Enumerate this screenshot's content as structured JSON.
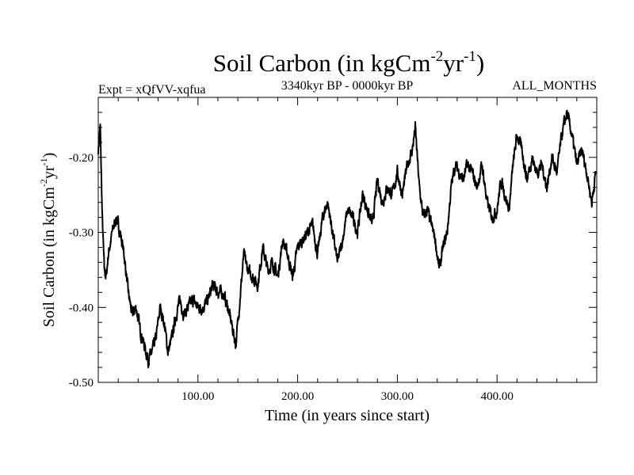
{
  "chart_data": {
    "type": "line",
    "title": {
      "main": "Soil Carbon (in kgCm",
      "sup1": "-2",
      "mid": "yr",
      "sup2": "-1",
      "end": ")"
    },
    "subtitle_left": "Expt = xQfVV-xqfua",
    "subtitle_center": "3340kyr BP - 0000kyr BP",
    "subtitle_right": "ALL_MONTHS",
    "xlabel": "Time (in years since start)",
    "ylabel": {
      "main": "Soil Carbon (in kgCm",
      "sup1": "-2",
      "mid": "yr",
      "sup2": "-1",
      "end": ")"
    },
    "xlim": [
      0,
      500
    ],
    "ylim": [
      -0.5,
      -0.12
    ],
    "x_ticks": [
      {
        "value": 100,
        "label": "100.00"
      },
      {
        "value": 200,
        "label": "200.00"
      },
      {
        "value": 300,
        "label": "300.00"
      },
      {
        "value": 400,
        "label": "400.00"
      }
    ],
    "y_ticks": [
      {
        "value": -0.5,
        "label": "-0.50"
      },
      {
        "value": -0.4,
        "label": "-0.40"
      },
      {
        "value": -0.3,
        "label": "-0.30"
      },
      {
        "value": -0.2,
        "label": "-0.20"
      }
    ],
    "series": [
      {
        "name": "Soil Carbon",
        "x": [
          0,
          2,
          4,
          6,
          8,
          10,
          14,
          18,
          22,
          26,
          30,
          34,
          38,
          42,
          46,
          50,
          54,
          58,
          62,
          66,
          70,
          74,
          78,
          82,
          86,
          90,
          95,
          100,
          105,
          110,
          115,
          120,
          125,
          130,
          135,
          138,
          142,
          146,
          150,
          155,
          160,
          165,
          170,
          175,
          180,
          185,
          190,
          195,
          200,
          205,
          210,
          215,
          220,
          225,
          230,
          235,
          240,
          245,
          250,
          255,
          260,
          265,
          270,
          275,
          280,
          285,
          290,
          295,
          300,
          305,
          310,
          315,
          318,
          322,
          326,
          330,
          334,
          338,
          342,
          346,
          350,
          354,
          358,
          362,
          366,
          370,
          375,
          380,
          385,
          390,
          395,
          400,
          404,
          408,
          412,
          416,
          420,
          425,
          430,
          435,
          440,
          445,
          450,
          455,
          460,
          465,
          470,
          475,
          480,
          485,
          490,
          495,
          499
        ],
        "values": [
          -0.19,
          -0.16,
          -0.28,
          -0.35,
          -0.36,
          -0.33,
          -0.3,
          -0.28,
          -0.3,
          -0.33,
          -0.38,
          -0.41,
          -0.4,
          -0.43,
          -0.45,
          -0.47,
          -0.46,
          -0.44,
          -0.4,
          -0.42,
          -0.46,
          -0.44,
          -0.41,
          -0.39,
          -0.41,
          -0.4,
          -0.39,
          -0.4,
          -0.4,
          -0.39,
          -0.37,
          -0.38,
          -0.38,
          -0.4,
          -0.43,
          -0.45,
          -0.39,
          -0.33,
          -0.35,
          -0.36,
          -0.37,
          -0.32,
          -0.35,
          -0.34,
          -0.36,
          -0.31,
          -0.33,
          -0.36,
          -0.32,
          -0.31,
          -0.3,
          -0.29,
          -0.33,
          -0.28,
          -0.26,
          -0.3,
          -0.34,
          -0.31,
          -0.27,
          -0.28,
          -0.3,
          -0.25,
          -0.27,
          -0.29,
          -0.23,
          -0.26,
          -0.24,
          -0.25,
          -0.22,
          -0.25,
          -0.21,
          -0.19,
          -0.16,
          -0.24,
          -0.28,
          -0.27,
          -0.29,
          -0.31,
          -0.35,
          -0.32,
          -0.3,
          -0.24,
          -0.21,
          -0.22,
          -0.23,
          -0.21,
          -0.22,
          -0.24,
          -0.21,
          -0.26,
          -0.28,
          -0.27,
          -0.23,
          -0.25,
          -0.27,
          -0.21,
          -0.17,
          -0.19,
          -0.23,
          -0.2,
          -0.22,
          -0.21,
          -0.24,
          -0.2,
          -0.22,
          -0.17,
          -0.14,
          -0.17,
          -0.21,
          -0.19,
          -0.22,
          -0.26,
          -0.22
        ]
      }
    ],
    "noise_seed": 7,
    "noise_amp": 0.012
  }
}
